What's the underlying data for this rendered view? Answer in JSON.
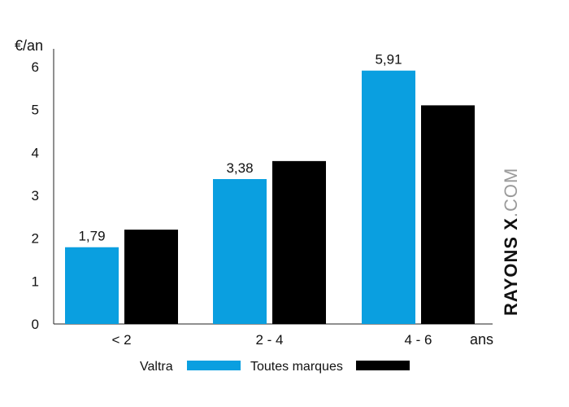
{
  "chart_data": {
    "type": "bar",
    "ylabel": "€/an",
    "xlabel": "ans",
    "categories": [
      "< 2",
      "2 - 4",
      "4 - 6"
    ],
    "series": [
      {
        "name": "Valtra",
        "values": [
          1.79,
          3.38,
          5.91
        ],
        "color": "#0a9fe0",
        "labels": [
          "1,79",
          "3,38",
          "5,91"
        ]
      },
      {
        "name": "Toutes marques",
        "values": [
          2.2,
          3.8,
          5.1
        ],
        "color": "#000000"
      }
    ],
    "ylim": [
      0,
      6
    ],
    "yticks": [
      "0",
      "1",
      "2",
      "3",
      "4",
      "5",
      "6"
    ],
    "grid": false,
    "legend": "bottom"
  },
  "watermark": {
    "bold": "RAYONS X",
    "light": ".COM"
  }
}
